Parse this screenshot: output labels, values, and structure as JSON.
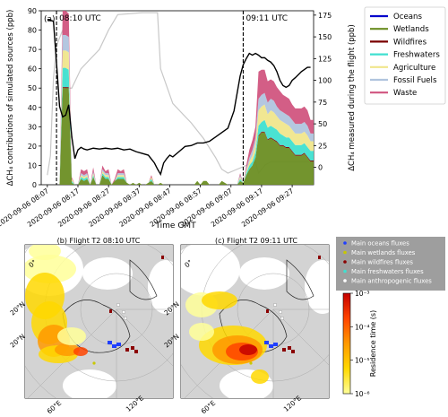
{
  "chart_data": [
    {
      "type": "area",
      "panel_label": "(a)",
      "xlabel": "Time GMT",
      "ylabel": "ΔCH₄ contributions of simulated sources (ppb)",
      "ylabel_right": "ΔCH₄ measured during the flight (ppb)",
      "xtick_labels": [
        "2020-09-06 08:07",
        "2020-09-06 08:17",
        "2020-09-06 08:27",
        "2020-09-06 08:37",
        "2020-09-06 08:47",
        "2020-09-06 08:57",
        "2020-09-06 09:07",
        "2020-09-06 09:17",
        "2020-09-06 09:27"
      ],
      "xtick_minutes": [
        7,
        17,
        27,
        37,
        47,
        57,
        67,
        77,
        87
      ],
      "xlim": [
        5,
        94
      ],
      "ylim": [
        0,
        90
      ],
      "yticks": [
        0,
        10,
        20,
        30,
        40,
        50,
        60,
        70,
        80,
        90
      ],
      "ylim_right": [
        -20,
        180
      ],
      "yticks_right": [
        0,
        25,
        50,
        75,
        100,
        125,
        150,
        175
      ],
      "vlines": [
        {
          "minute": 10,
          "label": "08:10 UTC"
        },
        {
          "minute": 71,
          "label": "09:11 UTC"
        }
      ],
      "legend_location": "outside right",
      "series": [
        {
          "name": "Oceans",
          "color": "#0000cc",
          "values": [
            0,
            0,
            0,
            0,
            0,
            0,
            0,
            0,
            0,
            0,
            0,
            0,
            0,
            0,
            0,
            0,
            0,
            0,
            0,
            0,
            0,
            0,
            0,
            0,
            0,
            0,
            0,
            0,
            0,
            0,
            0,
            0,
            0,
            0,
            0,
            0,
            0,
            0,
            0,
            0,
            0,
            0,
            0,
            0,
            0,
            0,
            0,
            0,
            0,
            0,
            0,
            0,
            0,
            0,
            0,
            0,
            0,
            0,
            0,
            0,
            0,
            0,
            0,
            0,
            0,
            0,
            0,
            0,
            0,
            0,
            0,
            0,
            0,
            0,
            0,
            0,
            0,
            0,
            0,
            0,
            0,
            0,
            0,
            0,
            0,
            0,
            0,
            0,
            0,
            0
          ]
        },
        {
          "name": "Wetlands",
          "color": "#6b8e23",
          "values": [
            0,
            0,
            0,
            0,
            0,
            0,
            0,
            50,
            50,
            50,
            1,
            0,
            0,
            3,
            2,
            3,
            0,
            4,
            0,
            0,
            5,
            3,
            3,
            0,
            2,
            3,
            3,
            3,
            1,
            0,
            1,
            0,
            1,
            0,
            0,
            1,
            2,
            0,
            0,
            1,
            0,
            0,
            0,
            0,
            0,
            0,
            0,
            0,
            0,
            0,
            0,
            2,
            0,
            2,
            2,
            0,
            0,
            0,
            0,
            2,
            1,
            0,
            0,
            0,
            0,
            2,
            1,
            5,
            8,
            10,
            14,
            25,
            27,
            27,
            23,
            24,
            23,
            22,
            20,
            20,
            19,
            19,
            17,
            15,
            15,
            15,
            16,
            14,
            12,
            12
          ]
        },
        {
          "name": "Wildfires",
          "color": "#7a0000",
          "values": [
            0,
            0,
            0,
            0,
            0,
            0,
            0,
            0.5,
            0.5,
            0.5,
            0,
            0,
            0,
            0,
            0,
            0,
            0,
            0,
            0,
            0,
            0,
            0,
            0,
            0,
            0,
            0,
            0,
            0,
            0,
            0,
            0,
            0,
            0,
            0,
            0,
            0,
            0,
            0,
            0,
            0,
            0,
            0,
            0,
            0,
            0,
            0,
            0,
            0,
            0,
            0,
            0,
            0,
            0,
            0,
            0,
            0,
            0,
            0,
            0,
            0,
            0,
            0,
            0,
            0,
            0,
            0,
            0,
            0,
            0,
            0,
            0,
            0.5,
            0.5,
            0.5,
            0.5,
            0.5,
            0.5,
            0.5,
            0.5,
            0.5,
            0.5,
            0.5,
            0.5,
            0.5,
            0.5,
            0.5,
            0.5,
            0.5,
            0.5,
            0.5
          ]
        },
        {
          "name": "Freshwaters",
          "color": "#40e0d0",
          "values": [
            0,
            0,
            0,
            0,
            0,
            0,
            0,
            10,
            10,
            9,
            1,
            0,
            0,
            1,
            1,
            1,
            0,
            1,
            0,
            0,
            1,
            1,
            1,
            0,
            0,
            1,
            1,
            1,
            0,
            0,
            0,
            0,
            0,
            0,
            0,
            0,
            1,
            0,
            0,
            0,
            0,
            0,
            0,
            0,
            0,
            0,
            0,
            0,
            0,
            0,
            0,
            0,
            0,
            0,
            0,
            0,
            0,
            0,
            0,
            0,
            0,
            0,
            0,
            0,
            0,
            1,
            0,
            1,
            2,
            2,
            3,
            5,
            5,
            6,
            6,
            6,
            6,
            6,
            6,
            5,
            5,
            5,
            5,
            5,
            5,
            5,
            5,
            5,
            5,
            5
          ]
        },
        {
          "name": "Agriculture",
          "color": "#f0e68c",
          "values": [
            0,
            0,
            0,
            0,
            0,
            0,
            0,
            9,
            9,
            9,
            1,
            0,
            0,
            1,
            1,
            1,
            0,
            1,
            0,
            0,
            1,
            1,
            1,
            0,
            0,
            1,
            1,
            1,
            0,
            0,
            0,
            0,
            0,
            0,
            0,
            0,
            1,
            0,
            0,
            0,
            0,
            0,
            0,
            0,
            0,
            0,
            0,
            0,
            0,
            0,
            0,
            0,
            0,
            0,
            0,
            0,
            0,
            0,
            0,
            0,
            0,
            0,
            0,
            0,
            0,
            1,
            0,
            1,
            2,
            3,
            4,
            8,
            8,
            8,
            7,
            8,
            8,
            7,
            7,
            7,
            7,
            6,
            6,
            6,
            6,
            6,
            6,
            6,
            5,
            5
          ]
        },
        {
          "name": "Fossil Fuels",
          "color": "#b0c4de",
          "values": [
            0,
            0,
            0,
            0,
            0,
            0,
            0,
            8,
            8,
            8,
            0,
            0,
            0,
            1,
            1,
            1,
            0,
            1,
            0,
            0,
            1,
            1,
            1,
            0,
            0,
            1,
            1,
            1,
            0,
            0,
            0,
            0,
            0,
            0,
            0,
            0,
            0,
            0,
            0,
            0,
            0,
            0,
            0,
            0,
            0,
            0,
            0,
            0,
            0,
            0,
            0,
            0,
            0,
            0,
            0,
            0,
            0,
            0,
            0,
            0,
            0,
            0,
            0,
            0,
            0,
            1,
            0,
            1,
            2,
            3,
            3,
            6,
            6,
            6,
            6,
            6,
            6,
            5,
            5,
            5,
            5,
            5,
            5,
            5,
            5,
            5,
            5,
            5,
            4,
            4
          ]
        },
        {
          "name": "Waste",
          "color": "#d1557f",
          "values": [
            0,
            0,
            0,
            0,
            0,
            0,
            0,
            14,
            14,
            12,
            1,
            0,
            0,
            2,
            2,
            2,
            0,
            2,
            0,
            0,
            2,
            1,
            2,
            0,
            1,
            2,
            1,
            2,
            0,
            0,
            0,
            0,
            0,
            0,
            0,
            0,
            1,
            0,
            0,
            0,
            0,
            0,
            0,
            0,
            0,
            0,
            0,
            0,
            0,
            0,
            0,
            0,
            0,
            0,
            0,
            0,
            0,
            0,
            0,
            0,
            0,
            0,
            0,
            0,
            0,
            1,
            0,
            2,
            4,
            5,
            6,
            14,
            13,
            12,
            11,
            10,
            10,
            10,
            10,
            9,
            9,
            9,
            8,
            8,
            8,
            8,
            8,
            8,
            7,
            7
          ]
        }
      ],
      "measured": {
        "color": "#000000",
        "points": [
          [
            7,
            170
          ],
          [
            9,
            168
          ],
          [
            10,
            120
          ],
          [
            11,
            70
          ],
          [
            12,
            58
          ],
          [
            13,
            60
          ],
          [
            14,
            72
          ],
          [
            15,
            35
          ],
          [
            16,
            10
          ],
          [
            17,
            20
          ],
          [
            18,
            23
          ],
          [
            19,
            21
          ],
          [
            20,
            20
          ],
          [
            22,
            22
          ],
          [
            24,
            21
          ],
          [
            26,
            22
          ],
          [
            28,
            21
          ],
          [
            30,
            22
          ],
          [
            32,
            20
          ],
          [
            34,
            21
          ],
          [
            36,
            18
          ],
          [
            38,
            16
          ],
          [
            40,
            14
          ],
          [
            42,
            5
          ],
          [
            43,
            -2
          ],
          [
            44,
            -8
          ],
          [
            45,
            5
          ],
          [
            46,
            10
          ],
          [
            47,
            14
          ],
          [
            48,
            12
          ],
          [
            50,
            18
          ],
          [
            52,
            24
          ],
          [
            54,
            25
          ],
          [
            56,
            28
          ],
          [
            58,
            28
          ],
          [
            60,
            30
          ],
          [
            62,
            35
          ],
          [
            64,
            40
          ],
          [
            66,
            45
          ],
          [
            68,
            65
          ],
          [
            70,
            105
          ],
          [
            71,
            118
          ],
          [
            72,
            125
          ],
          [
            73,
            131
          ],
          [
            74,
            129
          ],
          [
            75,
            131
          ],
          [
            76,
            129
          ],
          [
            77,
            126
          ],
          [
            78,
            126
          ],
          [
            79,
            123
          ],
          [
            80,
            121
          ],
          [
            81,
            117
          ],
          [
            82,
            110
          ],
          [
            83,
            100
          ],
          [
            84,
            94
          ],
          [
            85,
            92
          ],
          [
            86,
            94
          ],
          [
            87,
            100
          ],
          [
            88,
            103
          ],
          [
            90,
            110
          ],
          [
            92,
            115
          ],
          [
            93,
            115
          ]
        ]
      },
      "altitude_profile": {
        "color": "#c8c8c8",
        "points": [
          [
            7,
            5
          ],
          [
            8,
            15
          ],
          [
            9,
            55
          ],
          [
            10,
            72
          ],
          [
            12,
            80
          ],
          [
            13,
            50
          ],
          [
            15,
            50
          ],
          [
            18,
            60
          ],
          [
            24,
            70
          ],
          [
            27,
            80
          ],
          [
            30,
            88
          ],
          [
            38,
            89
          ],
          [
            43,
            89
          ],
          [
            44,
            60
          ],
          [
            48,
            42
          ],
          [
            54,
            32
          ],
          [
            58,
            24
          ],
          [
            62,
            14
          ],
          [
            64,
            8
          ],
          [
            66,
            6
          ],
          [
            69,
            8
          ],
          [
            72,
            10
          ],
          [
            75,
            12
          ],
          [
            76,
            6
          ],
          [
            78,
            10
          ],
          [
            80,
            12
          ],
          [
            84,
            12
          ],
          [
            88,
            12
          ],
          [
            93,
            12
          ]
        ]
      }
    },
    {
      "type": "map",
      "title": "(b) Flight T2 08:10 UTC",
      "lat_labels": [
        "0°",
        "20°N",
        "20°N"
      ],
      "lon_labels": [
        "60°E",
        "120°E"
      ],
      "lon_labels_side": [
        "0°"
      ]
    },
    {
      "type": "map",
      "title": "(c) Flight T2 09:11 UTC",
      "lat_labels": [
        "0°",
        "20°N",
        "20°N"
      ],
      "lon_labels": [
        "60°E",
        "120°E"
      ],
      "lon_labels_side": [
        "0°"
      ]
    }
  ],
  "fluxes_legend": [
    {
      "label": "Main oceans fluxes",
      "color": "#1f3fff"
    },
    {
      "label": "Main wetlands fluxes",
      "color": "#c8c800"
    },
    {
      "label": "Main wildfires fluxes",
      "color": "#8b0000"
    },
    {
      "label": "Main freshwaters fluxes",
      "color": "#40e0d0"
    },
    {
      "label": "Main anthropogenic fluxes",
      "color": "#ffffff"
    }
  ],
  "colorbar": {
    "label": "Residence time (s)",
    "tick_labels": [
      "10⁻³",
      "10⁻⁴",
      "10⁻⁵",
      "10⁻⁶"
    ],
    "colors": [
      "#ffff99",
      "#ffd800",
      "#ff9900",
      "#ff4400",
      "#c40000"
    ]
  }
}
